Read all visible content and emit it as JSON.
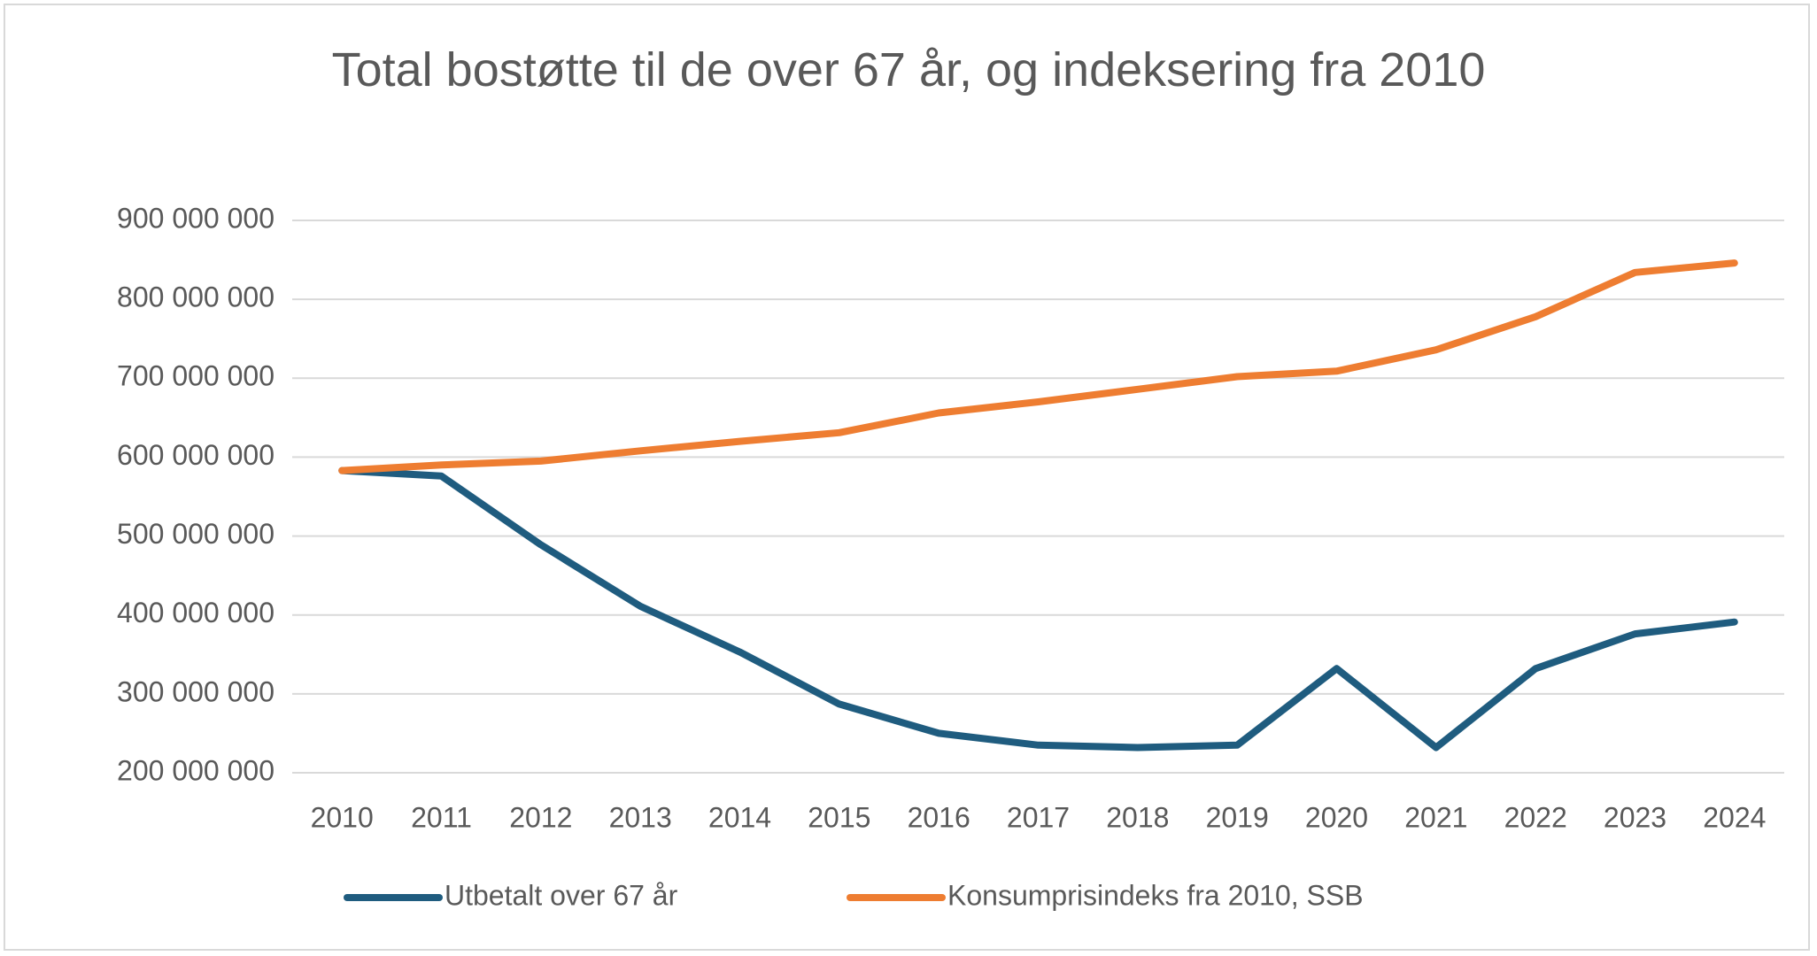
{
  "chart_data": {
    "type": "line",
    "title": "Total bostøtte til de over 67 år, og indeksering fra 2010",
    "categories": [
      "2010",
      "2011",
      "2012",
      "2013",
      "2014",
      "2015",
      "2016",
      "2017",
      "2018",
      "2019",
      "2020",
      "2021",
      "2022",
      "2023",
      "2024"
    ],
    "series": [
      {
        "name": "Utbetalt over 67 år",
        "color": "#1f5c7f",
        "values": [
          583000000,
          576000000,
          489000000,
          411000000,
          353000000,
          287000000,
          250000000,
          235000000,
          232000000,
          235000000,
          332000000,
          232000000,
          332000000,
          376000000,
          391000000
        ]
      },
      {
        "name": "Konsumprisindeks fra 2010, SSB",
        "color": "#ee7d31",
        "values": [
          583000000,
          590000000,
          595000000,
          608000000,
          620000000,
          631000000,
          656000000,
          670000000,
          686000000,
          702000000,
          709000000,
          736000000,
          778000000,
          834000000,
          846000000
        ]
      }
    ],
    "ylim": [
      200000000,
      900000000
    ],
    "yticks": [
      {
        "value": 200000000,
        "label": "200 000 000"
      },
      {
        "value": 300000000,
        "label": "300 000 000"
      },
      {
        "value": 400000000,
        "label": "400 000 000"
      },
      {
        "value": 500000000,
        "label": "500 000 000"
      },
      {
        "value": 600000000,
        "label": "600 000 000"
      },
      {
        "value": 700000000,
        "label": "700 000 000"
      },
      {
        "value": 800000000,
        "label": "800 000 000"
      },
      {
        "value": 900000000,
        "label": "900 000 000"
      }
    ],
    "grid": true,
    "legend": "bottom"
  }
}
